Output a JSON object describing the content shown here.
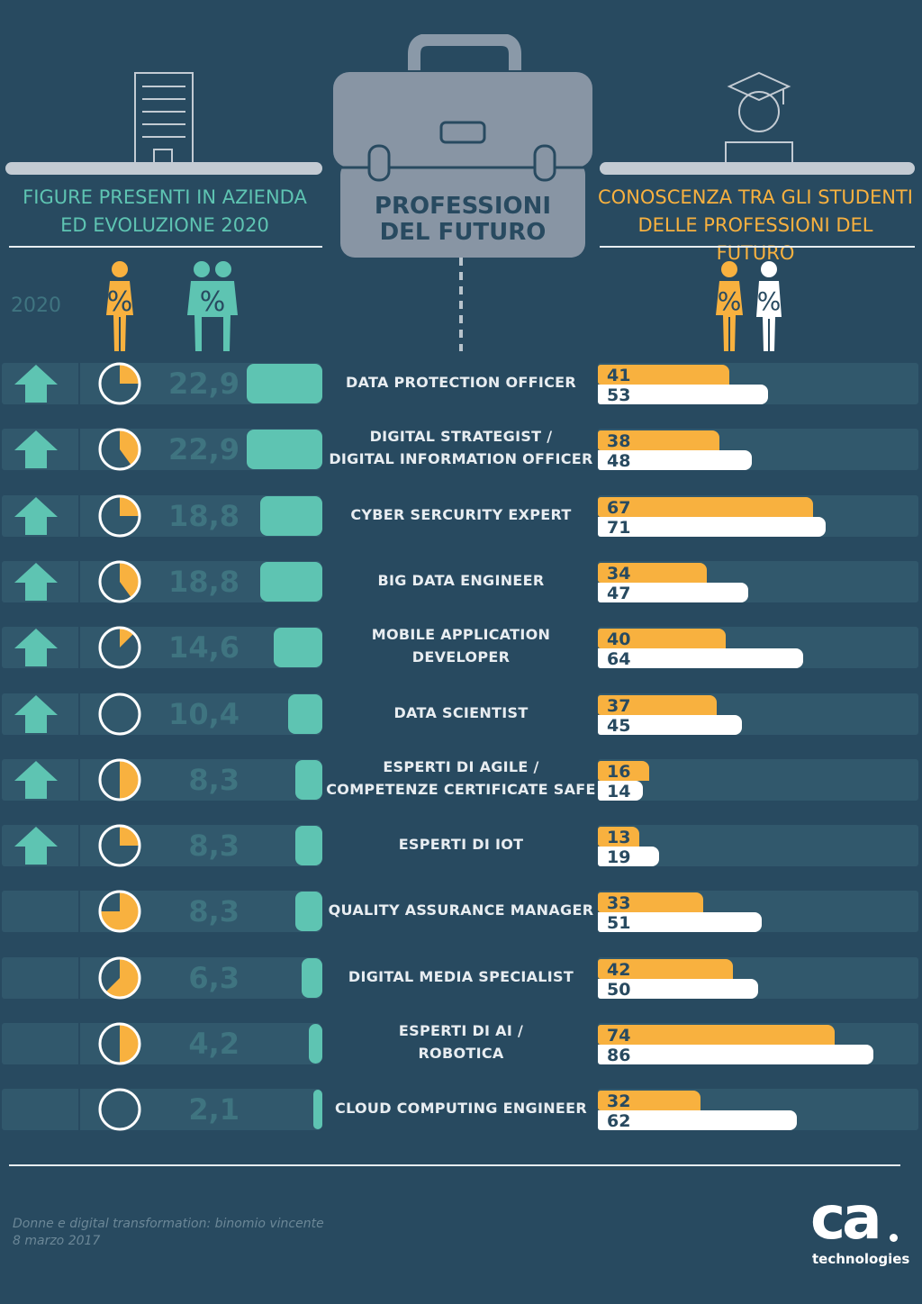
{
  "header": {
    "left_line1": "FIGURE PRESENTI IN AZIENDA",
    "left_line2": "ED EVOLUZIONE 2020",
    "center_line1": "PROFESSIONI",
    "center_line2": "DEL FUTURO",
    "right_line1": "CONOSCENZA TRA GLI STUDENTI",
    "right_line2": "DELLE PROFESSIONI DEL FUTURO",
    "year": "2020",
    "percent_symbol": "%"
  },
  "colors": {
    "background": "#284a60",
    "teal": "#5ec4b2",
    "orange": "#f8b13f",
    "white": "#ffffff",
    "row_track": "#31586c"
  },
  "chart_data": {
    "type": "bar",
    "categories": [
      [
        "DATA PROTECTION OFFICER"
      ],
      [
        "DIGITAL STRATEGIST /",
        "DIGITAL INFORMATION OFFICER"
      ],
      [
        "CYBER SERCURITY EXPERT"
      ],
      [
        "BIG DATA ENGINEER"
      ],
      [
        "MOBILE APPLICATION",
        "DEVELOPER"
      ],
      [
        "DATA SCIENTIST"
      ],
      [
        "ESPERTI DI AGILE /",
        "COMPETENZE CERTIFICATE SAFE"
      ],
      [
        "ESPERTI DI IOT"
      ],
      [
        "QUALITY ASSURANCE MANAGER"
      ],
      [
        "DIGITAL MEDIA SPECIALIST"
      ],
      [
        "ESPERTI DI AI /",
        "ROBOTICA"
      ],
      [
        "CLOUD COMPUTING ENGINEER"
      ]
    ],
    "growth_2020": [
      true,
      true,
      true,
      true,
      true,
      true,
      true,
      true,
      false,
      false,
      false,
      false
    ],
    "women_share_pct": [
      25,
      40,
      25,
      40,
      12.5,
      0,
      50,
      25,
      75,
      62.5,
      50,
      0
    ],
    "presence_pct_labels": [
      "22,9",
      "22,9",
      "18,8",
      "18,8",
      "14,6",
      "10,4",
      "8,3",
      "8,3",
      "8,3",
      "6,3",
      "4,2",
      "2,1"
    ],
    "presence_pct": [
      22.9,
      22.9,
      18.8,
      18.8,
      14.6,
      10.4,
      8.3,
      8.3,
      8.3,
      6.3,
      4.2,
      2.1
    ],
    "students_female_pct": [
      41,
      38,
      67,
      34,
      40,
      37,
      16,
      13,
      33,
      42,
      74,
      32
    ],
    "students_male_pct": [
      53,
      48,
      71,
      47,
      64,
      45,
      14,
      19,
      51,
      50,
      86,
      62
    ],
    "xlim_students": [
      0,
      100
    ]
  },
  "footer": {
    "source_line1": "Donne e digital transformation: binomio vincente",
    "source_line2": "8 marzo 2017",
    "logo_text": "ca",
    "logo_sub": "technologies"
  }
}
